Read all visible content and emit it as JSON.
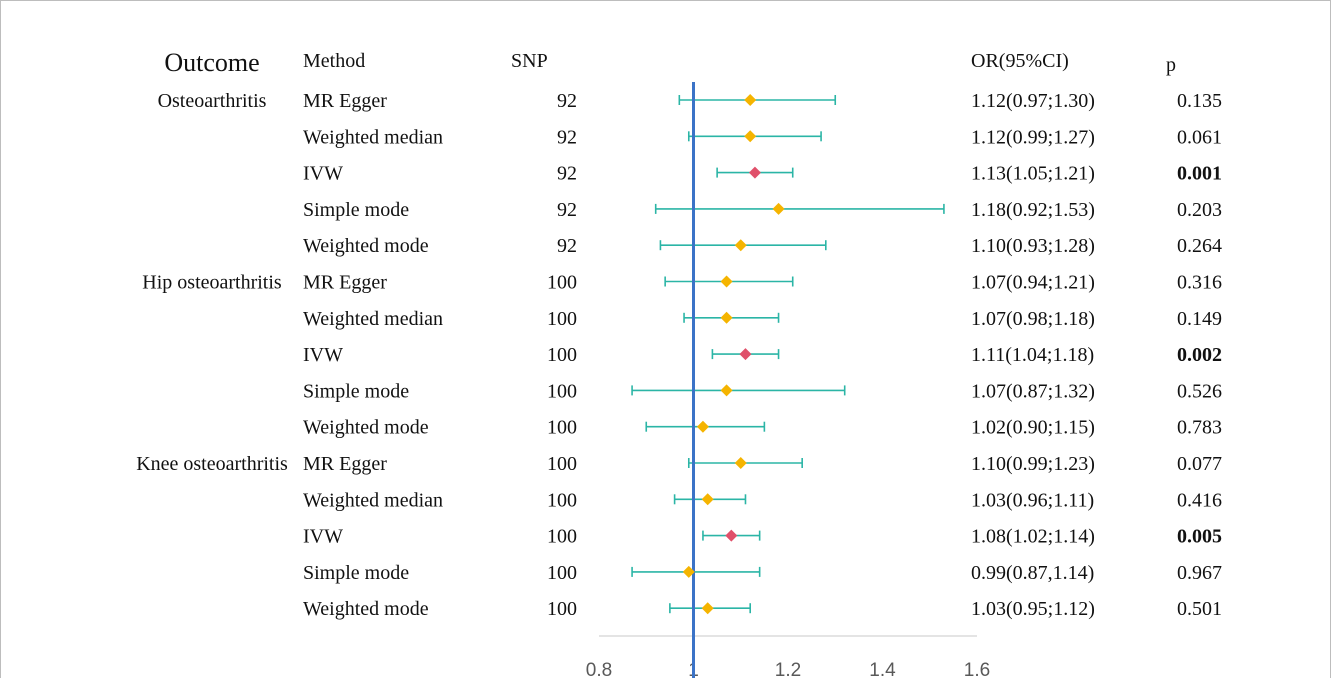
{
  "chart_data": {
    "type": "forest",
    "headers": {
      "outcome": "Outcome",
      "method": "Method",
      "snp": "SNP",
      "or": "OR(95%CI)",
      "p": "p"
    },
    "reference_line": 1,
    "xlim": [
      0.8,
      1.6
    ],
    "xticks": [
      "0.8",
      "1",
      "1.2",
      "1.4",
      "1.6"
    ],
    "colors": {
      "estimate": "#f5b400",
      "ivw_estimate": "#e0506a",
      "ci_line": "#2bb5a6",
      "reference": "#3b73c7",
      "axis": "#c8c8c8"
    },
    "rows": [
      {
        "outcome": "Osteoarthritis",
        "method": "MR Egger",
        "snp": "92",
        "or": 1.12,
        "lo": 0.97,
        "hi": 1.3,
        "or_text": "1.12(0.97;1.30)",
        "p": "0.135",
        "ivw": false
      },
      {
        "outcome": "",
        "method": "Weighted median",
        "snp": "92",
        "or": 1.12,
        "lo": 0.99,
        "hi": 1.27,
        "or_text": "1.12(0.99;1.27)",
        "p": "0.061",
        "ivw": false
      },
      {
        "outcome": "",
        "method": "IVW",
        "snp": "92",
        "or": 1.13,
        "lo": 1.05,
        "hi": 1.21,
        "or_text": "1.13(1.05;1.21)",
        "p": "0.001",
        "ivw": true
      },
      {
        "outcome": "",
        "method": "Simple mode",
        "snp": "92",
        "or": 1.18,
        "lo": 0.92,
        "hi": 1.53,
        "or_text": "1.18(0.92;1.53)",
        "p": "0.203",
        "ivw": false
      },
      {
        "outcome": "",
        "method": "Weighted mode",
        "snp": "92",
        "or": 1.1,
        "lo": 0.93,
        "hi": 1.28,
        "or_text": "1.10(0.93;1.28)",
        "p": "0.264",
        "ivw": false
      },
      {
        "outcome": "Hip osteoarthritis",
        "method": "MR Egger",
        "snp": "100",
        "or": 1.07,
        "lo": 0.94,
        "hi": 1.21,
        "or_text": "1.07(0.94;1.21)",
        "p": "0.316",
        "ivw": false
      },
      {
        "outcome": "",
        "method": "Weighted median",
        "snp": "100",
        "or": 1.07,
        "lo": 0.98,
        "hi": 1.18,
        "or_text": "1.07(0.98;1.18)",
        "p": "0.149",
        "ivw": false
      },
      {
        "outcome": "",
        "method": "IVW",
        "snp": "100",
        "or": 1.11,
        "lo": 1.04,
        "hi": 1.18,
        "or_text": "1.11(1.04;1.18)",
        "p": "0.002",
        "ivw": true
      },
      {
        "outcome": "",
        "method": "Simple mode",
        "snp": "100",
        "or": 1.07,
        "lo": 0.87,
        "hi": 1.32,
        "or_text": "1.07(0.87;1.32)",
        "p": "0.526",
        "ivw": false
      },
      {
        "outcome": "",
        "method": "Weighted mode",
        "snp": "100",
        "or": 1.02,
        "lo": 0.9,
        "hi": 1.15,
        "or_text": "1.02(0.90;1.15)",
        "p": "0.783",
        "ivw": false
      },
      {
        "outcome": "Knee osteoarthritis",
        "method": "MR Egger",
        "snp": "100",
        "or": 1.1,
        "lo": 0.99,
        "hi": 1.23,
        "or_text": "1.10(0.99;1.23)",
        "p": "0.077",
        "ivw": false
      },
      {
        "outcome": "",
        "method": "Weighted median",
        "snp": "100",
        "or": 1.03,
        "lo": 0.96,
        "hi": 1.11,
        "or_text": "1.03(0.96;1.11)",
        "p": "0.416",
        "ivw": false
      },
      {
        "outcome": "",
        "method": "IVW",
        "snp": "100",
        "or": 1.08,
        "lo": 1.02,
        "hi": 1.14,
        "or_text": "1.08(1.02;1.14)",
        "p": "0.005",
        "ivw": true
      },
      {
        "outcome": "",
        "method": "Simple mode",
        "snp": "100",
        "or": 0.99,
        "lo": 0.87,
        "hi": 1.14,
        "or_text": "0.99(0.87,1.14)",
        "p": "0.967",
        "ivw": false
      },
      {
        "outcome": "",
        "method": "Weighted mode",
        "snp": "100",
        "or": 1.03,
        "lo": 0.95,
        "hi": 1.12,
        "or_text": "1.03(0.95;1.12)",
        "p": "0.501",
        "ivw": false
      }
    ]
  }
}
